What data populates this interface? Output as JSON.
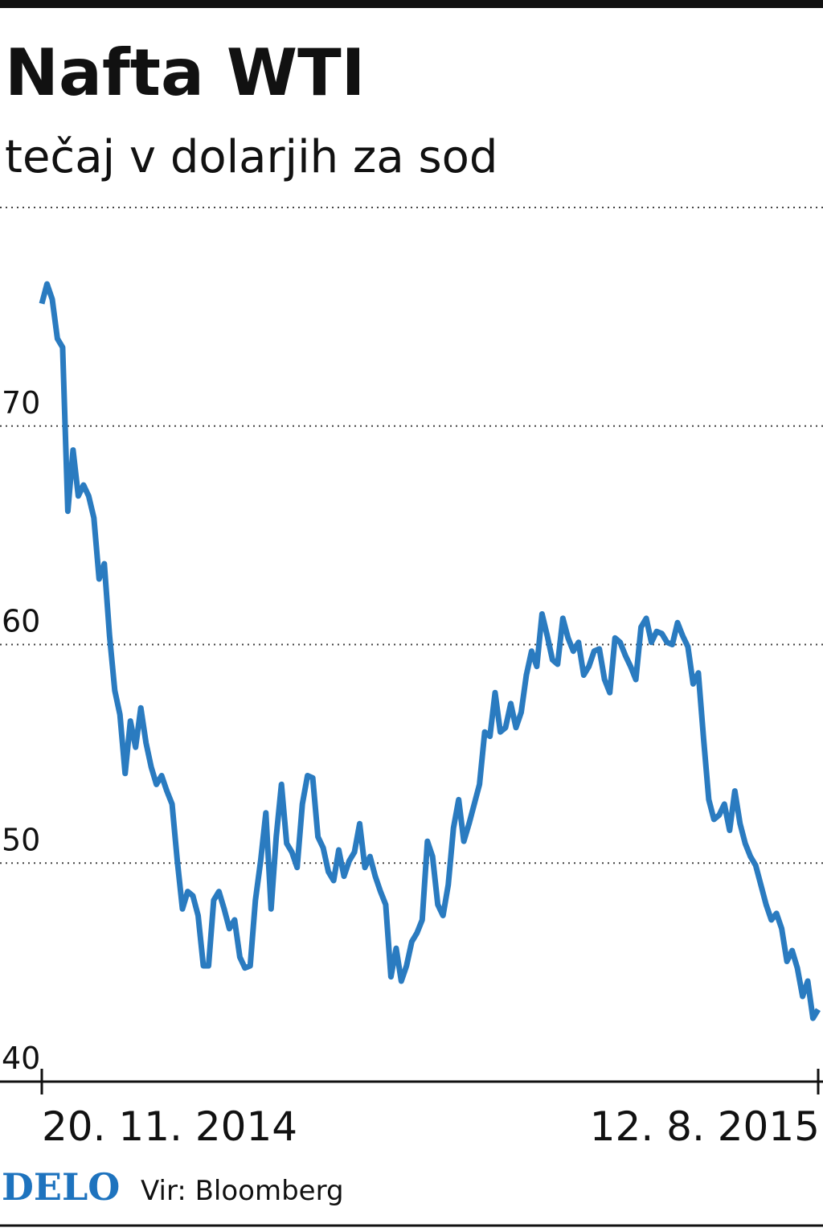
{
  "chart_data": {
    "type": "line",
    "title": "Nafta WTI",
    "subtitle": "tečaj v dolarjih za sod",
    "logo": "DELO",
    "source": "Vir: Bloomberg",
    "categories": [
      "20. 11. 2014",
      null,
      null,
      null,
      null,
      null,
      null,
      null,
      null,
      null,
      null,
      null,
      null,
      null,
      null,
      null,
      null,
      null,
      null,
      null,
      null,
      null,
      null,
      null,
      null,
      null,
      null,
      null,
      null,
      null,
      null,
      null,
      null,
      null,
      null,
      null,
      null,
      null,
      null,
      null,
      null,
      null,
      null,
      null,
      null,
      null,
      null,
      null,
      null,
      null,
      null,
      null,
      null,
      null,
      null,
      null,
      null,
      null,
      null,
      null,
      null,
      null,
      null,
      null,
      null,
      null,
      null,
      null,
      null,
      null,
      null,
      null,
      null,
      null,
      null,
      null,
      null,
      null,
      null,
      null,
      null,
      null,
      null,
      null,
      null,
      null,
      null,
      null,
      null,
      null,
      null,
      null,
      null,
      null,
      null,
      null,
      null,
      null,
      null,
      null,
      null,
      null,
      null,
      null,
      null,
      null,
      null,
      null,
      null,
      null,
      null,
      null,
      null,
      null,
      null,
      null,
      null,
      null,
      null,
      null,
      null,
      null,
      null,
      null,
      null,
      null,
      null,
      null,
      null,
      null,
      null,
      null,
      null,
      null,
      null,
      null,
      null,
      null,
      null,
      null,
      null,
      null,
      null,
      null,
      null,
      null,
      null,
      null,
      null,
      "12. 8. 2015"
    ],
    "series": [
      {
        "color": "#2a7bc0",
        "values": [
          75.6,
          76.5,
          75.8,
          74.0,
          73.6,
          66.1,
          68.9,
          66.8,
          67.3,
          66.8,
          65.8,
          63.0,
          63.7,
          60.4,
          57.9,
          56.8,
          54.1,
          56.5,
          55.3,
          57.1,
          55.5,
          54.4,
          53.6,
          54.0,
          53.3,
          52.7,
          50.1,
          47.9,
          48.7,
          48.5,
          47.6,
          45.3,
          45.3,
          48.3,
          48.7,
          47.9,
          47.0,
          47.4,
          45.7,
          45.2,
          45.3,
          48.3,
          50.1,
          52.3,
          47.9,
          51.2,
          53.6,
          50.9,
          50.5,
          49.8,
          52.7,
          54.0,
          53.9,
          51.2,
          50.7,
          49.6,
          49.2,
          50.6,
          49.4,
          50.1,
          50.5,
          51.8,
          49.8,
          50.3,
          49.4,
          48.7,
          48.1,
          44.8,
          46.1,
          44.6,
          45.3,
          46.4,
          46.8,
          47.4,
          51.0,
          50.3,
          48.1,
          47.6,
          49.0,
          51.6,
          52.9,
          51.0,
          51.8,
          52.7,
          53.6,
          56.0,
          55.8,
          57.8,
          56.0,
          56.2,
          57.3,
          56.2,
          56.9,
          58.6,
          59.7,
          59.0,
          61.4,
          60.4,
          59.3,
          59.1,
          61.2,
          60.3,
          59.7,
          60.1,
          58.6,
          59.0,
          59.7,
          59.8,
          58.4,
          57.8,
          60.3,
          60.1,
          59.5,
          59.0,
          58.4,
          60.8,
          61.2,
          60.1,
          60.6,
          60.5,
          60.1,
          60.0,
          61.0,
          60.4,
          59.9,
          58.2,
          58.7,
          55.7,
          52.9,
          52.0,
          52.2,
          52.7,
          51.5,
          53.3,
          51.8,
          50.9,
          50.3,
          49.9,
          49.0,
          48.1,
          47.4,
          47.7,
          47.0,
          45.5,
          46.0,
          45.2,
          43.9,
          44.6,
          42.9,
          43.3
        ]
      }
    ],
    "ylim": [
      40,
      80
    ],
    "yticks": [
      40,
      50,
      60,
      70
    ],
    "grid": true
  }
}
